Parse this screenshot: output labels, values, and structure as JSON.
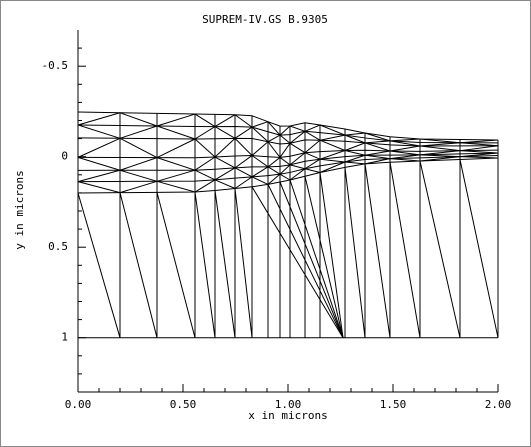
{
  "chart_data": {
    "type": "mesh",
    "title": "SUPREM-IV.GS B.9305",
    "x_label": "x in microns",
    "y_label": "y in microns",
    "xlim": [
      0,
      2
    ],
    "ylim": [
      -0.7,
      1.3
    ],
    "y_inverted": true,
    "xticks": [
      {
        "value": 0,
        "label": "0.00"
      },
      {
        "value": 0.5,
        "label": "0.50"
      },
      {
        "value": 1,
        "label": "1.00"
      },
      {
        "value": 1.5,
        "label": "1.50"
      },
      {
        "value": 2,
        "label": "2.00"
      }
    ],
    "yticks": [
      -0.5,
      0,
      0.5,
      1
    ],
    "xminor": [
      0.1,
      0.2,
      0.3,
      0.4,
      0.6,
      0.7,
      0.8,
      0.9,
      1.1,
      1.2,
      1.3,
      1.4,
      1.6,
      1.7,
      1.8,
      1.9
    ],
    "yminor": [
      -0.6,
      -0.4,
      -0.3,
      -0.2,
      -0.1,
      0.1,
      0.2,
      0.3,
      0.4,
      0.6,
      0.7,
      0.8,
      0.9,
      1.1,
      1.2
    ],
    "color": "#000000"
  }
}
